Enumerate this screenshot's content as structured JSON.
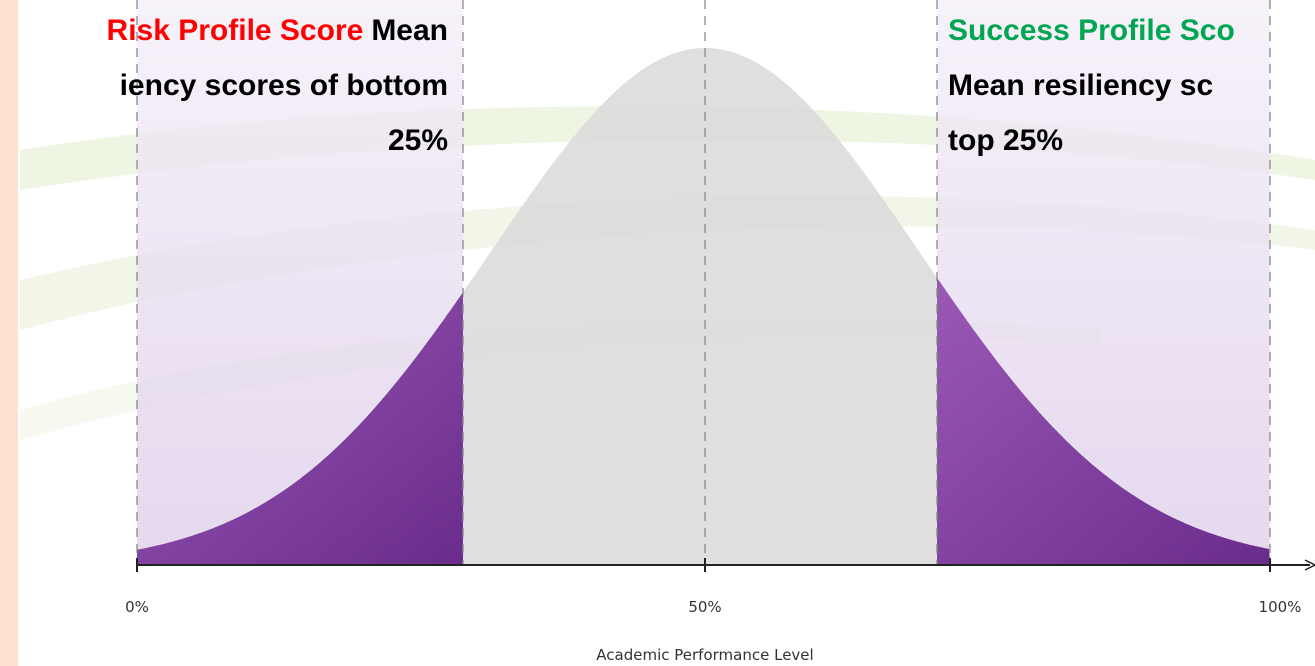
{
  "left_note": {
    "highlight": "Risk Profile Score",
    "lines": [
      "Mean",
      "iency scores of bottom",
      "25%"
    ]
  },
  "right_note": {
    "highlight": "Success Profile Sco",
    "lines": [
      "Mean resiliency sc",
      "top 25%"
    ]
  },
  "axis": {
    "ticks": [
      "0%",
      "50%",
      "100%"
    ],
    "label": "Academic Performance Level"
  }
}
